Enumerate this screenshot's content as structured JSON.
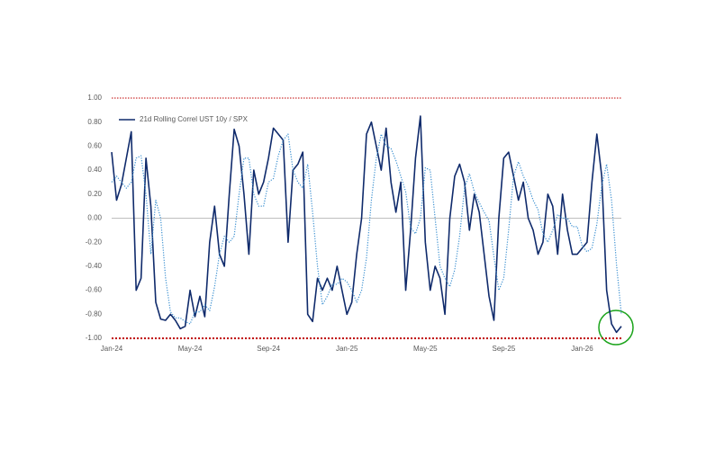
{
  "chart_data": {
    "type": "line",
    "categories": [
      "Jan-24",
      null,
      null,
      null,
      null,
      null,
      null,
      null,
      null,
      null,
      null,
      null,
      null,
      null,
      null,
      null,
      "May-24",
      null,
      null,
      null,
      null,
      null,
      null,
      null,
      null,
      null,
      null,
      null,
      null,
      null,
      null,
      null,
      "Sep-24",
      null,
      null,
      null,
      null,
      null,
      null,
      null,
      null,
      null,
      null,
      null,
      null,
      null,
      null,
      null,
      "Jan-25",
      null,
      null,
      null,
      null,
      null,
      null,
      null,
      null,
      null,
      null,
      null,
      null,
      null,
      null,
      null,
      "May-25",
      null,
      null,
      null,
      null,
      null,
      null,
      null,
      null,
      null,
      null,
      null,
      null,
      null,
      null,
      null,
      "Sep-25",
      null,
      null,
      null,
      null,
      null,
      null,
      null,
      null,
      null,
      null,
      null,
      null,
      null,
      null,
      null,
      "Jan-26",
      null,
      null,
      null,
      null,
      null,
      null,
      null,
      null
    ],
    "series": [
      {
        "name": "21d Rolling Correl UST 10y / SPX",
        "color": "#0f2a6b",
        "style": "solid",
        "values": [
          0.55,
          0.15,
          0.28,
          0.5,
          0.72,
          -0.6,
          -0.5,
          0.5,
          0.1,
          -0.7,
          -0.84,
          -0.85,
          -0.8,
          -0.85,
          -0.92,
          -0.9,
          -0.6,
          -0.82,
          -0.65,
          -0.82,
          -0.2,
          0.1,
          -0.3,
          -0.4,
          0.2,
          0.74,
          0.6,
          0.2,
          -0.3,
          0.4,
          0.2,
          0.3,
          0.5,
          0.75,
          0.7,
          0.65,
          -0.2,
          0.4,
          0.45,
          0.55,
          -0.8,
          -0.86,
          -0.5,
          -0.6,
          -0.5,
          -0.6,
          -0.4,
          -0.6,
          -0.8,
          -0.7,
          -0.3,
          0.0,
          0.7,
          0.8,
          0.6,
          0.4,
          0.75,
          0.3,
          0.05,
          0.3,
          -0.6,
          -0.1,
          0.5,
          0.85,
          -0.2,
          -0.6,
          -0.4,
          -0.5,
          -0.8,
          0.0,
          0.35,
          0.45,
          0.3,
          -0.1,
          0.2,
          0.05,
          -0.3,
          -0.65,
          -0.85,
          0.0,
          0.5,
          0.55,
          0.35,
          0.15,
          0.3,
          0.0,
          -0.1,
          -0.3,
          -0.2,
          0.2,
          0.1,
          -0.3,
          0.2,
          -0.1,
          -0.3,
          -0.3,
          -0.25,
          -0.2,
          0.3,
          0.7,
          0.35,
          -0.6,
          -0.88,
          -0.95,
          -0.9
        ]
      },
      {
        "color": "#3a8fd0",
        "style": "dotted",
        "values": [
          0.3,
          0.35,
          0.3,
          0.25,
          0.3,
          0.5,
          0.52,
          0.2,
          -0.3,
          0.15,
          0.0,
          -0.5,
          -0.78,
          -0.83,
          -0.83,
          -0.86,
          -0.88,
          -0.78,
          -0.78,
          -0.72,
          -0.77,
          -0.57,
          -0.3,
          -0.15,
          -0.2,
          -0.15,
          0.2,
          0.5,
          0.5,
          0.2,
          0.1,
          0.1,
          0.3,
          0.33,
          0.52,
          0.65,
          0.7,
          0.4,
          0.3,
          0.25,
          0.45,
          0.05,
          -0.4,
          -0.72,
          -0.65,
          -0.55,
          -0.55,
          -0.5,
          -0.53,
          -0.6,
          -0.7,
          -0.6,
          -0.33,
          0.15,
          0.5,
          0.7,
          0.6,
          0.58,
          0.48,
          0.35,
          0.22,
          -0.08,
          -0.13,
          0.0,
          0.42,
          0.4,
          0.0,
          -0.4,
          -0.5,
          -0.57,
          -0.43,
          -0.15,
          0.25,
          0.37,
          0.22,
          0.13,
          0.05,
          -0.02,
          -0.32,
          -0.6,
          -0.5,
          -0.1,
          0.35,
          0.47,
          0.35,
          0.27,
          0.15,
          0.07,
          -0.13,
          -0.2,
          -0.1,
          0.03,
          0.0,
          0.0,
          -0.07,
          -0.07,
          -0.23,
          -0.28,
          -0.25,
          -0.05,
          0.27,
          0.45,
          0.15,
          -0.38,
          -0.8
        ]
      }
    ],
    "ylim": [
      -1,
      1
    ],
    "yticks": [
      {
        "value": -1,
        "label": "-1.00"
      },
      {
        "value": -0.8,
        "label": "-0.80"
      },
      {
        "value": -0.6,
        "label": "-0.60"
      },
      {
        "value": -0.4,
        "label": "-0.40"
      },
      {
        "value": -0.2,
        "label": "-0.20"
      },
      {
        "value": 0,
        "label": "0.00"
      },
      {
        "value": 0.2,
        "label": "0.20"
      },
      {
        "value": 0.4,
        "label": "0.40"
      },
      {
        "value": 0.6,
        "label": "0.60"
      },
      {
        "value": 0.8,
        "label": "0.80"
      },
      {
        "value": 1,
        "label": "1.00"
      }
    ],
    "reference_lines": [
      {
        "value": 1,
        "color": "#c00000"
      },
      {
        "value": 0,
        "color": "#bfbfbf"
      },
      {
        "value": -1,
        "color": "#c00000"
      }
    ],
    "legend": "upper-left"
  }
}
